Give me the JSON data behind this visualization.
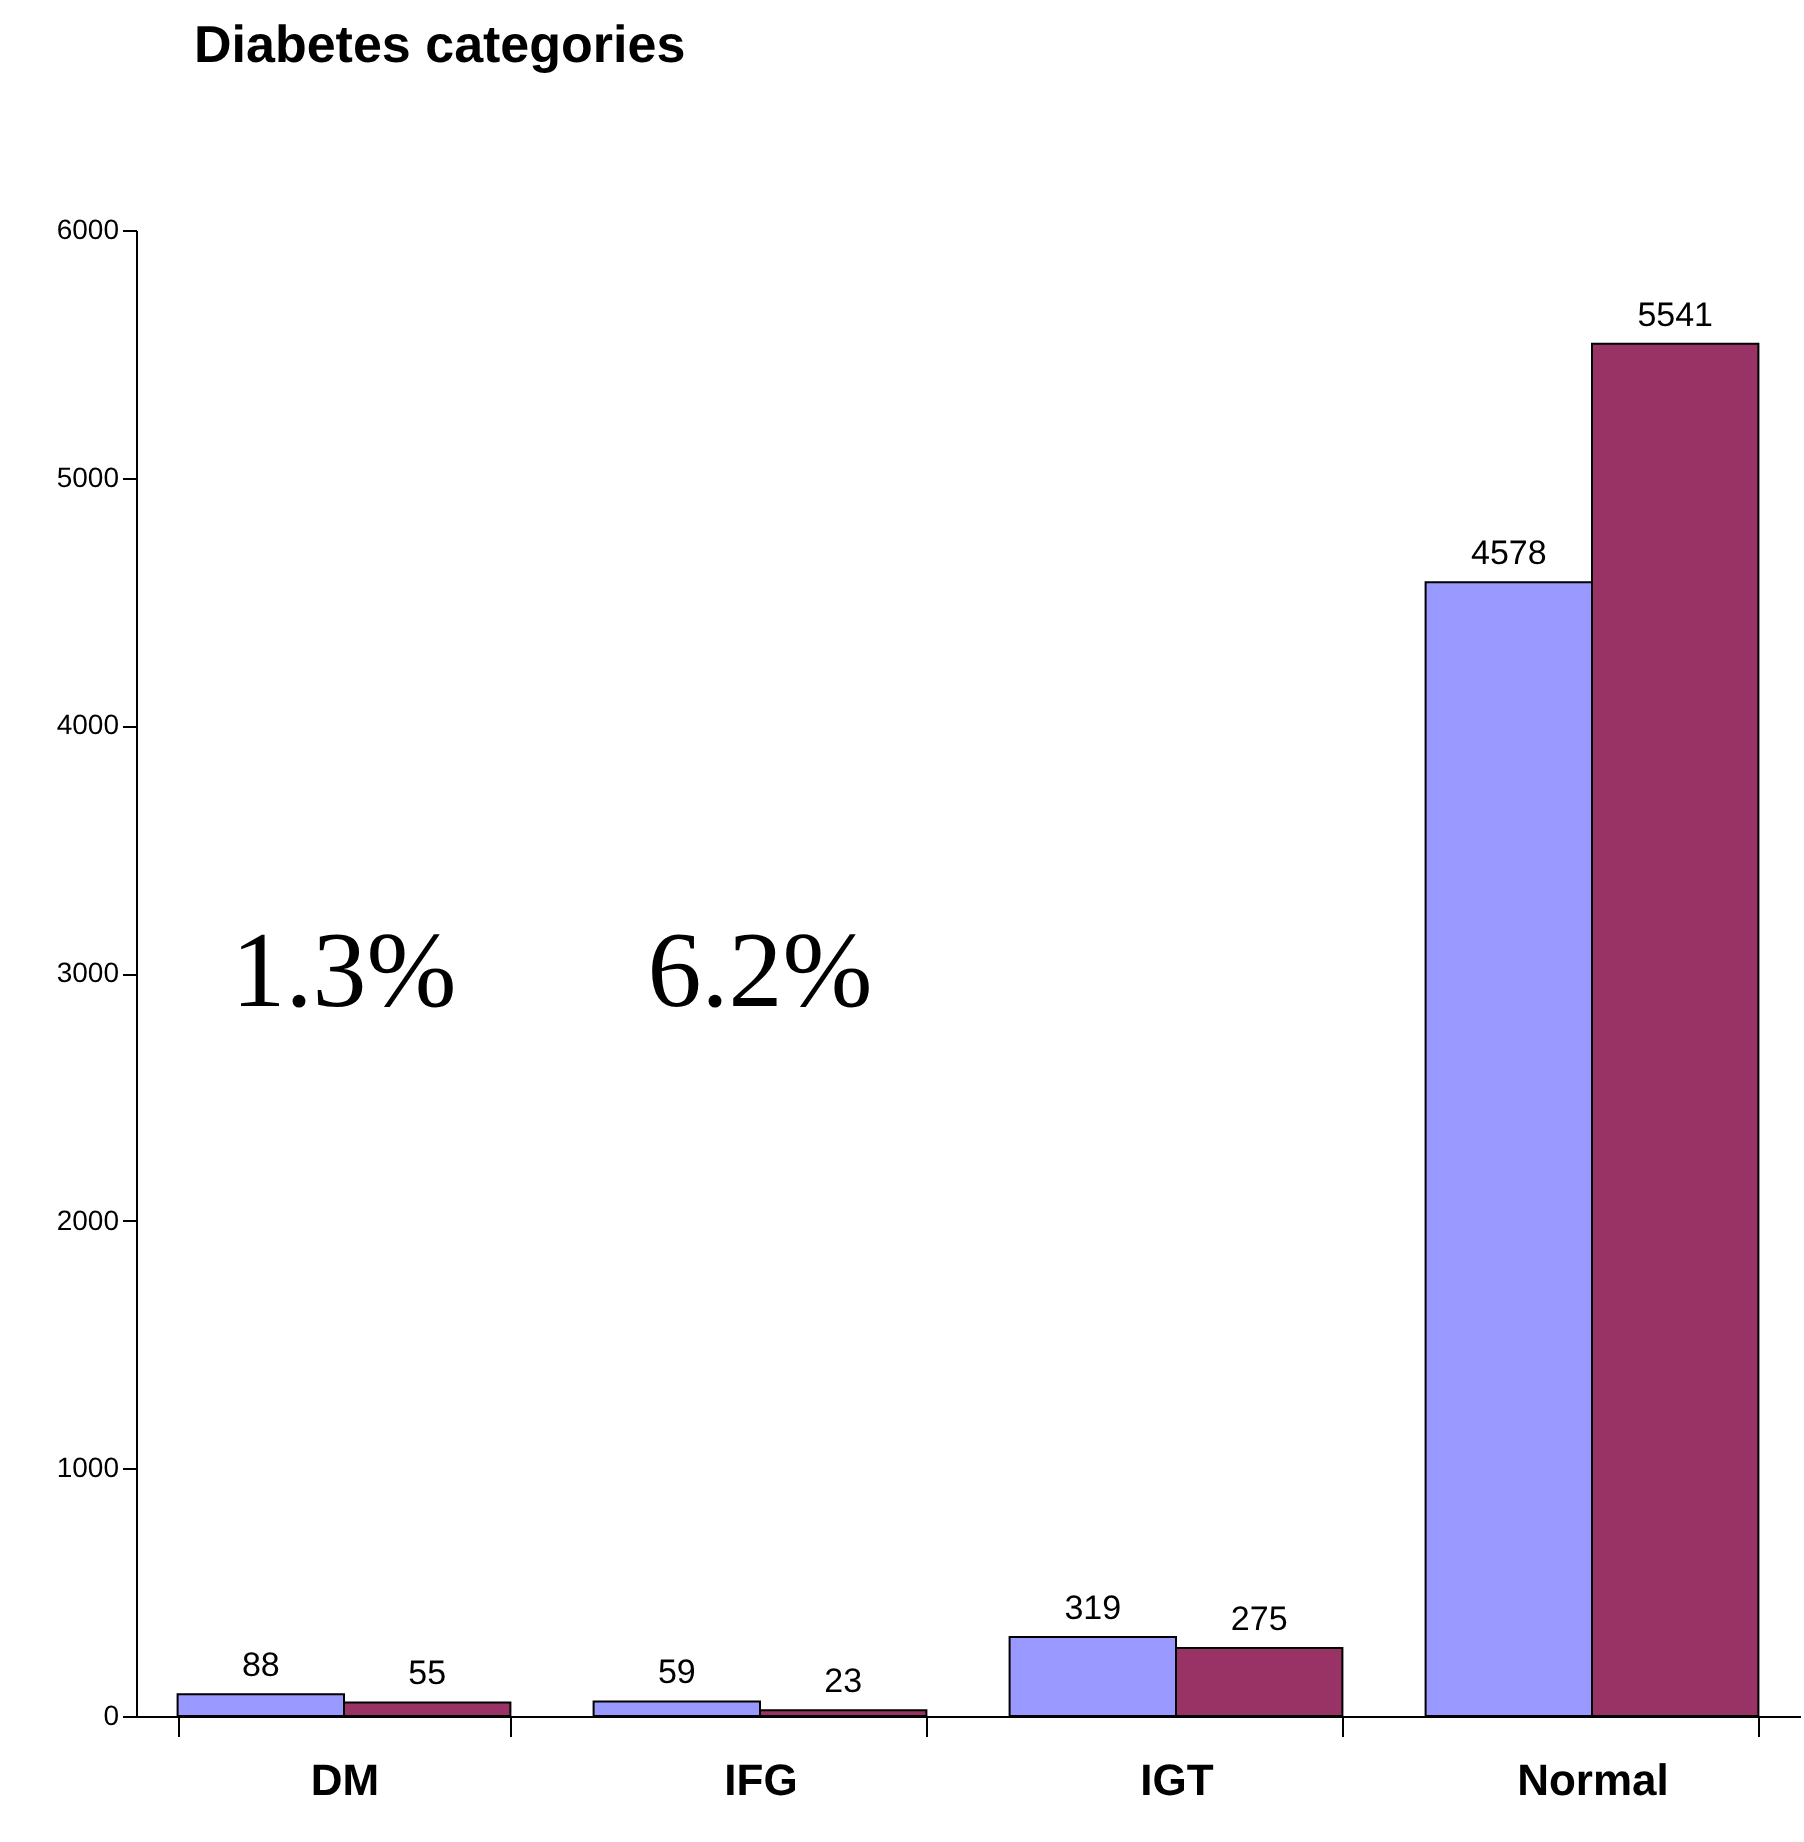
{
  "chart_data": {
    "type": "bar",
    "title": "Diabetes categories",
    "categories": [
      "DM",
      "IFG",
      "IGT",
      "Normal"
    ],
    "series": [
      {
        "color": "#9999ff",
        "values": [
          88,
          59,
          319,
          4578
        ]
      },
      {
        "color": "#993366",
        "values": [
          55,
          23,
          275,
          5541
        ]
      }
    ],
    "ylim": [
      0,
      6000
    ],
    "yticks": [
      0,
      1000,
      2000,
      3000,
      4000,
      5000,
      6000
    ],
    "data_labels": true,
    "grid": false,
    "legend": false,
    "annotations": [
      "1.3%",
      "6.2%"
    ]
  }
}
